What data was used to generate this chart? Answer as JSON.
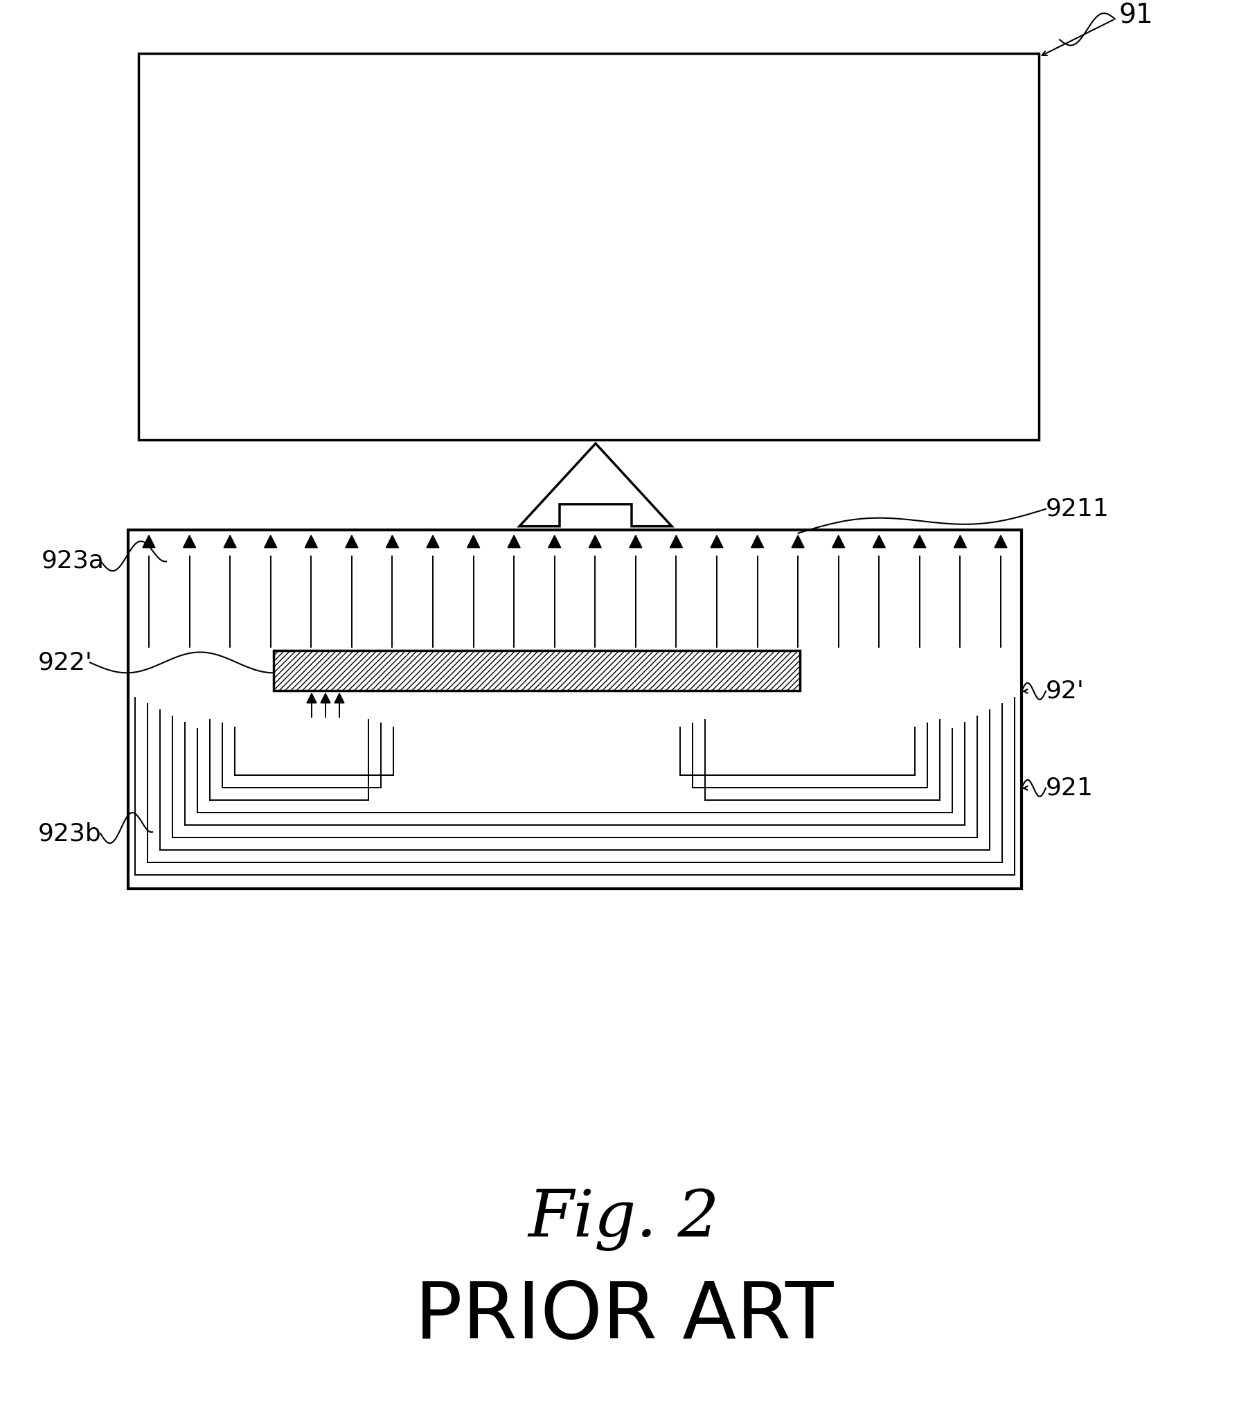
{
  "bg_color": "#ffffff",
  "line_color": "#000000",
  "fig_title": "Fig. 2",
  "fig_subtitle": "PRIOR ART",
  "label_91": "91",
  "label_921": "921",
  "label_922": "922'",
  "label_923a": "923a",
  "label_923b": "923b",
  "label_9211": "9211",
  "label_92p": "92'",
  "lw_main": 2.5,
  "lw_thin": 1.4
}
